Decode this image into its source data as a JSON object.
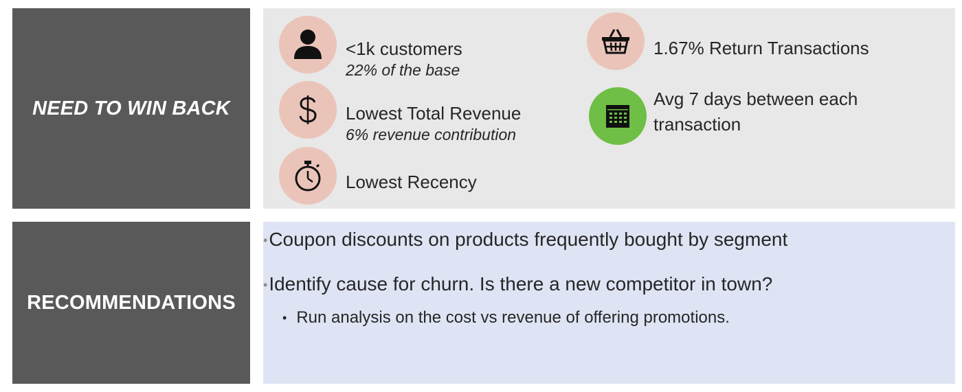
{
  "win_back": {
    "label": "NEED TO WIN BACK",
    "stats": [
      {
        "icon": "person-icon",
        "title": "<1k customers",
        "sub": "22% of the base"
      },
      {
        "icon": "dollar-icon",
        "title": "Lowest Total Revenue",
        "sub": "6% revenue contribution"
      },
      {
        "icon": "stopwatch-icon",
        "title": "Lowest Recency",
        "sub": ""
      },
      {
        "icon": "basket-icon",
        "title": "1.67% Return Transactions",
        "sub": ""
      },
      {
        "icon": "calendar-icon",
        "title_line1": "Avg 7 days between each",
        "title_line2": "transaction"
      }
    ],
    "colors": {
      "circle": "#ebc4b9",
      "calendar_circle": "#6fbe45",
      "panel": "#e8e8e8"
    }
  },
  "recommendations": {
    "label": "RECOMMENDATIONS",
    "bullets": [
      "Coupon discounts on products frequently bought by segment",
      "Identify cause for churn. Is there a new competitor in town?"
    ],
    "sub_bullets": [
      "Run analysis on the cost vs revenue of offering promotions."
    ],
    "colors": {
      "panel": "#dfe4f4",
      "label_box": "#595959"
    }
  }
}
